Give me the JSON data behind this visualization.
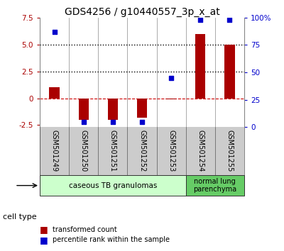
{
  "title": "GDS4256 / g10440557_3p_x_at",
  "samples": [
    "GSM501249",
    "GSM501250",
    "GSM501251",
    "GSM501252",
    "GSM501253",
    "GSM501254",
    "GSM501255"
  ],
  "transformed_count": [
    1.0,
    -2.0,
    -2.0,
    -1.8,
    -0.1,
    6.0,
    5.0
  ],
  "percentile_rank": [
    87,
    5,
    5,
    5,
    45,
    98,
    98
  ],
  "ylim_left": [
    -2.7,
    7.5
  ],
  "ylim_right": [
    0,
    100
  ],
  "bar_color": "#aa0000",
  "square_color": "#0000cc",
  "zero_line_color": "#cc0000",
  "dotted_line_color": "#000000",
  "group1_label": "caseous TB granulomas",
  "group2_label": "normal lung\nparenchyma",
  "group1_indices": [
    0,
    1,
    2,
    3,
    4
  ],
  "group2_indices": [
    5,
    6
  ],
  "group1_color": "#ccffcc",
  "group2_color": "#66cc66",
  "cell_type_label": "cell type",
  "legend_bar_label": "transformed count",
  "legend_square_label": "percentile rank within the sample",
  "label_fontsize": 7,
  "title_fontsize": 10,
  "tick_fontsize": 7.5,
  "left_yticks": [
    -2.5,
    0,
    2.5,
    5.0,
    7.5
  ],
  "right_yticks": [
    0,
    25,
    50,
    75,
    100
  ],
  "right_ytick_labels": [
    "0",
    "25",
    "50",
    "75",
    "100%"
  ],
  "bar_width": 0.35,
  "square_size": 25
}
